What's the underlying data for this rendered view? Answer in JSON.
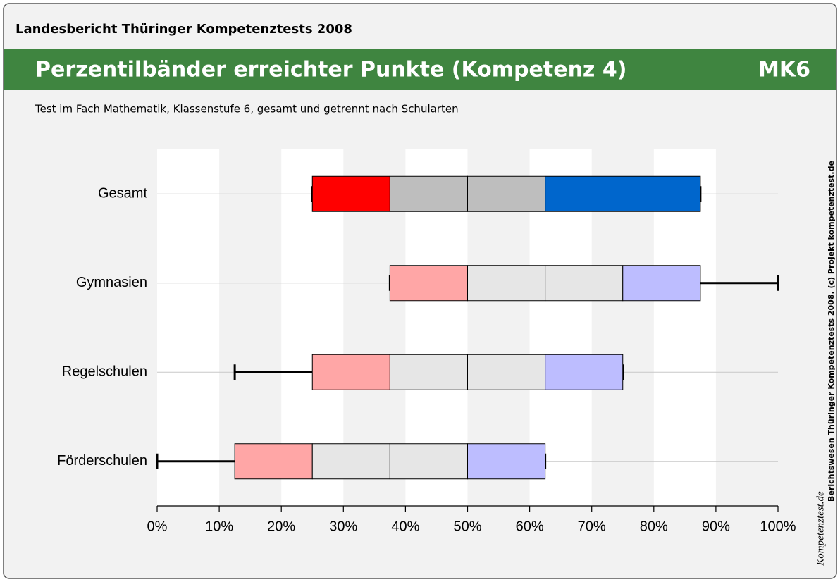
{
  "header": "Landesbericht Thüringer Kompetenztests 2008",
  "banner": {
    "title": "Perzentilbänder erreichter Punkte (Kompetenz 4)",
    "code": "MK6"
  },
  "side_note": "Berichtswesen Thüringer Kompetenztests 2008. (c) Projekt kompetenztest.de",
  "logo": "Kompetenztest.de",
  "chart_data": {
    "type": "percentile-band",
    "subtitle": "Test im Fach Mathematik, Klassenstufe 6, gesamt und getrennt nach Schularten",
    "categories": [
      "Gesamt",
      "Gymnasien",
      "Regelschulen",
      "Förderschulen"
    ],
    "values": [
      [
        25,
        25,
        37.5,
        50,
        62.5,
        87.5,
        87.5
      ],
      [
        37.5,
        37.5,
        50,
        62.5,
        75,
        87.5,
        100
      ],
      [
        12.5,
        25,
        37.5,
        50,
        62.5,
        75,
        75
      ],
      [
        0,
        12.5,
        25,
        37.5,
        50,
        62.5,
        62.5
      ]
    ],
    "colors": [
      [
        "#ff0000",
        "#bebebe",
        "#bebebe",
        "#0066cc"
      ],
      [
        "#ffa6a6",
        "#e6e6e6",
        "#e6e6e6",
        "#bdbdff"
      ],
      [
        "#ffa6a6",
        "#e6e6e6",
        "#e6e6e6",
        "#bdbdff"
      ],
      [
        "#ffa6a6",
        "#e6e6e6",
        "#e6e6e6",
        "#bdbdff"
      ]
    ],
    "xlim": [
      0,
      100
    ],
    "xticks": [
      {
        "value": 0,
        "label": "0%"
      },
      {
        "value": 10,
        "label": "10%"
      },
      {
        "value": 20,
        "label": "20%"
      },
      {
        "value": 30,
        "label": "30%"
      },
      {
        "value": 40,
        "label": "40%"
      },
      {
        "value": 50,
        "label": "50%"
      },
      {
        "value": 60,
        "label": "60%"
      },
      {
        "value": 70,
        "label": "70%"
      },
      {
        "value": 80,
        "label": "80%"
      },
      {
        "value": 90,
        "label": "90%"
      },
      {
        "value": 100,
        "label": "100%"
      }
    ]
  }
}
